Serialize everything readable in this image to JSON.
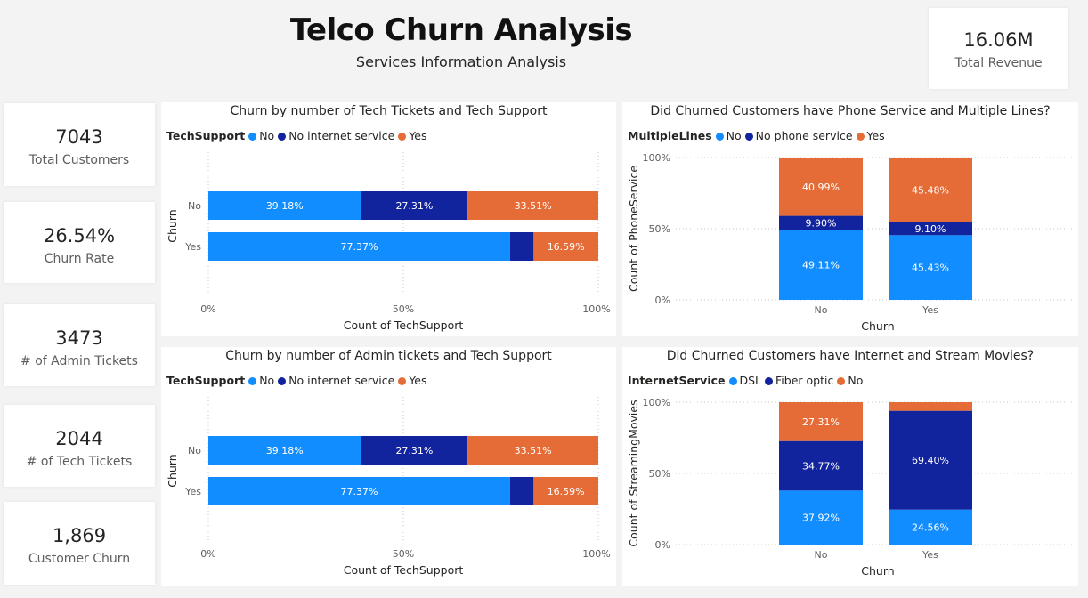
{
  "header": {
    "title": "Telco Churn Analysis",
    "subtitle": "Services Information Analysis"
  },
  "revenue": {
    "value": "16.06M",
    "label": "Total Revenue"
  },
  "kpis": [
    {
      "value": "7043",
      "label": "Total Customers"
    },
    {
      "value": "26.54%",
      "label": "Churn Rate"
    },
    {
      "value": "3473",
      "label": "# of Admin Tickets"
    },
    {
      "value": "2044",
      "label": "# of Tech Tickets"
    },
    {
      "value": "1,869",
      "label": "Customer Churn"
    }
  ],
  "colors": {
    "light_blue": "#118dff",
    "dark_blue": "#12239e",
    "orange": "#e66c37"
  },
  "chart_data": [
    {
      "type": "bar",
      "orientation": "horizontal",
      "stacked": "100%",
      "title": "Churn by number of Tech Tickets and Tech Support",
      "legend_title": "TechSupport",
      "categories": [
        "No",
        "Yes"
      ],
      "series": [
        {
          "name": "No",
          "color": "#118dff",
          "values": [
            39.18,
            77.37
          ],
          "labels": [
            "39.18%",
            "77.37%"
          ]
        },
        {
          "name": "No internet service",
          "color": "#12239e",
          "values": [
            27.31,
            6.04
          ],
          "labels": [
            "27.31%",
            ""
          ]
        },
        {
          "name": "Yes",
          "color": "#e66c37",
          "values": [
            33.51,
            16.59
          ],
          "labels": [
            "33.51%",
            "16.59%"
          ]
        }
      ],
      "xticks": [
        "0%",
        "50%",
        "100%"
      ],
      "xlabel": "Count of TechSupport",
      "ylabel": "Churn",
      "xlim": [
        0,
        100
      ]
    },
    {
      "type": "bar",
      "orientation": "vertical",
      "stacked": "100%",
      "title": "Did Churned Customers have Phone Service and Multiple Lines?",
      "legend_title": "MultipleLines",
      "categories": [
        "No",
        "Yes"
      ],
      "series": [
        {
          "name": "No",
          "color": "#118dff",
          "values": [
            49.11,
            45.43
          ],
          "labels": [
            "49.11%",
            "45.43%"
          ]
        },
        {
          "name": "No phone service",
          "color": "#12239e",
          "values": [
            9.9,
            9.1
          ],
          "labels": [
            "9.90%",
            "9.10%"
          ]
        },
        {
          "name": "Yes",
          "color": "#e66c37",
          "values": [
            40.99,
            45.48
          ],
          "labels": [
            "40.99%",
            "45.48%"
          ]
        }
      ],
      "yticks": [
        "0%",
        "50%",
        "100%"
      ],
      "xlabel": "Churn",
      "ylabel": "Count of PhoneService",
      "ylim": [
        0,
        100
      ]
    },
    {
      "type": "bar",
      "orientation": "horizontal",
      "stacked": "100%",
      "title": "Churn by number of Admin tickets and Tech Support",
      "legend_title": "TechSupport",
      "categories": [
        "No",
        "Yes"
      ],
      "series": [
        {
          "name": "No",
          "color": "#118dff",
          "values": [
            39.18,
            77.37
          ],
          "labels": [
            "39.18%",
            "77.37%"
          ]
        },
        {
          "name": "No internet service",
          "color": "#12239e",
          "values": [
            27.31,
            6.04
          ],
          "labels": [
            "27.31%",
            ""
          ]
        },
        {
          "name": "Yes",
          "color": "#e66c37",
          "values": [
            33.51,
            16.59
          ],
          "labels": [
            "33.51%",
            "16.59%"
          ]
        }
      ],
      "xticks": [
        "0%",
        "50%",
        "100%"
      ],
      "xlabel": "Count of TechSupport",
      "ylabel": "Churn",
      "xlim": [
        0,
        100
      ]
    },
    {
      "type": "bar",
      "orientation": "vertical",
      "stacked": "100%",
      "title": "Did Churned Customers have Internet and Stream Movies?",
      "legend_title": "InternetService",
      "categories": [
        "No",
        "Yes"
      ],
      "series": [
        {
          "name": "DSL",
          "color": "#118dff",
          "values": [
            37.92,
            24.56
          ],
          "labels": [
            "37.92%",
            "24.56%"
          ]
        },
        {
          "name": "Fiber optic",
          "color": "#12239e",
          "values": [
            34.77,
            69.4
          ],
          "labels": [
            "34.77%",
            "69.40%"
          ]
        },
        {
          "name": "No",
          "color": "#e66c37",
          "values": [
            27.31,
            6.04
          ],
          "labels": [
            "27.31%",
            ""
          ]
        }
      ],
      "yticks": [
        "0%",
        "50%",
        "100%"
      ],
      "xlabel": "Churn",
      "ylabel": "Count of StreamingMovies",
      "ylim": [
        0,
        100
      ]
    }
  ]
}
